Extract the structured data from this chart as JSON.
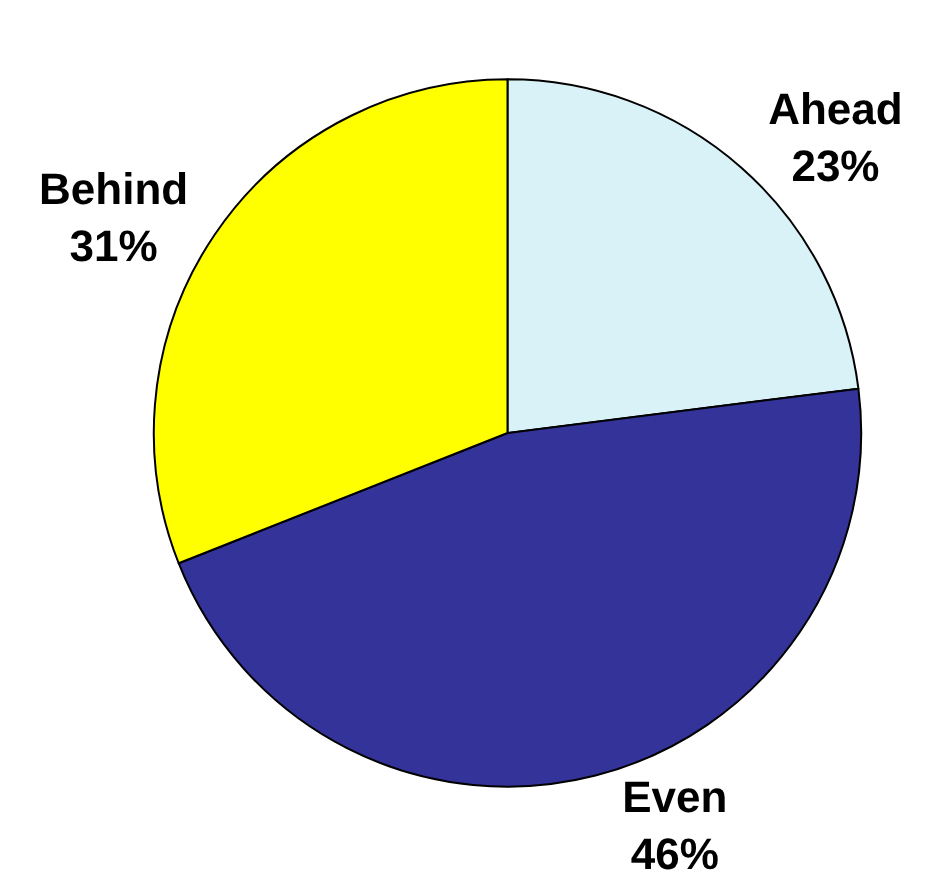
{
  "chart_data": {
    "type": "pie",
    "categories": [
      "Ahead",
      "Even",
      "Behind"
    ],
    "values": [
      23,
      46,
      31
    ],
    "value_labels": [
      "23%",
      "46%",
      "31%"
    ],
    "colors": [
      "#d9f2f7",
      "#333399",
      "#ffff00"
    ],
    "legend": false
  }
}
